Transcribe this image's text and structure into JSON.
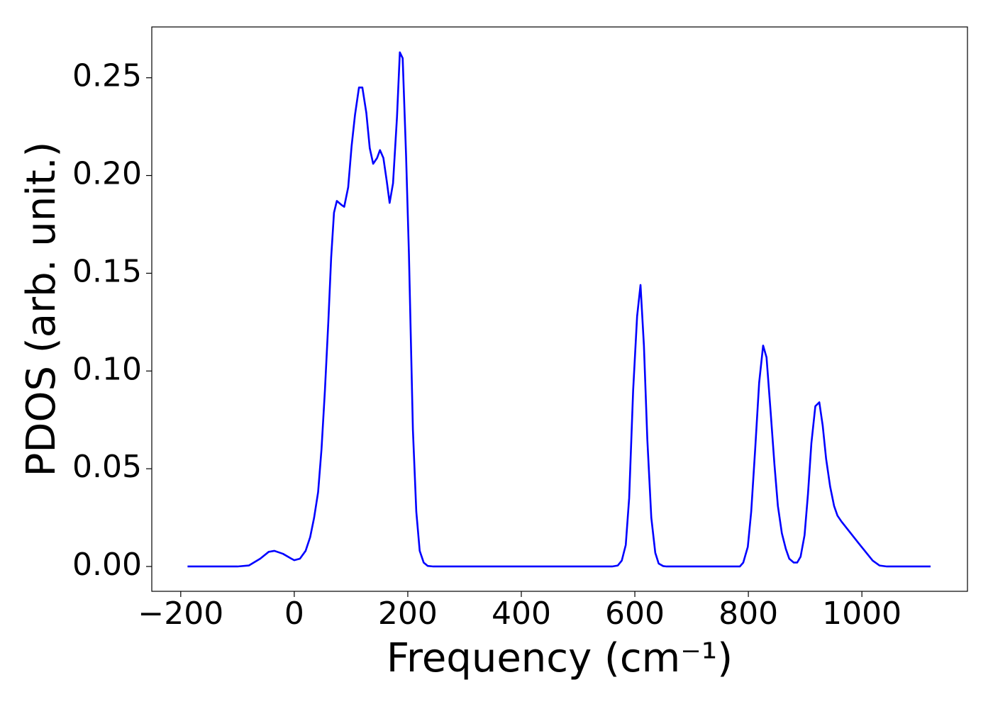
{
  "chart_data": {
    "type": "line",
    "xlabel": "Frequency (cm⁻¹)",
    "ylabel": "PDOS (arb. unit.)",
    "xlim": [
      -251,
      1186
    ],
    "ylim": [
      -0.0127,
      0.276
    ],
    "xticks": [
      {
        "value": -200,
        "label": "−200"
      },
      0,
      200,
      400,
      600,
      800,
      1000
    ],
    "yticks": [
      {
        "value": 0,
        "label": "0.00"
      },
      {
        "value": 0.05,
        "label": "0.05"
      },
      {
        "value": 0.1,
        "label": "0.10"
      },
      {
        "value": 0.15,
        "label": "0.15"
      },
      {
        "value": 0.2,
        "label": "0.20"
      },
      {
        "value": 0.25,
        "label": "0.25"
      }
    ],
    "grid": false,
    "x": [
      -188,
      -100,
      -80,
      -60,
      -45,
      -35,
      -20,
      -5,
      0,
      10,
      20,
      28,
      35,
      42,
      48,
      54,
      60,
      65,
      70,
      75,
      83,
      88,
      95,
      101,
      107,
      114,
      120,
      127,
      133,
      139,
      146,
      151,
      157,
      163,
      168,
      174,
      181,
      186,
      191,
      197,
      202,
      209,
      215,
      221,
      228,
      235,
      245,
      560,
      570,
      577,
      584,
      590,
      597,
      604,
      610,
      616,
      622,
      629,
      636,
      642,
      650,
      656,
      785,
      791,
      799,
      805,
      812,
      819,
      826,
      832,
      839,
      846,
      852,
      859,
      866,
      872,
      880,
      886,
      892,
      899,
      905,
      911,
      918,
      925,
      931,
      937,
      944,
      951,
      957,
      964,
      994,
      1019,
      1031,
      1044,
      1121
    ],
    "series": [
      {
        "name": "PDOS",
        "color": "#0000ff",
        "values": [
          0,
          0,
          0.0005,
          0.004,
          0.0075,
          0.008,
          0.0065,
          0.004,
          0.0032,
          0.004,
          0.008,
          0.015,
          0.025,
          0.038,
          0.06,
          0.09,
          0.125,
          0.158,
          0.181,
          0.187,
          0.185,
          0.184,
          0.194,
          0.215,
          0.231,
          0.245,
          0.245,
          0.232,
          0.214,
          0.206,
          0.209,
          0.213,
          0.209,
          0.197,
          0.186,
          0.196,
          0.23,
          0.263,
          0.26,
          0.21,
          0.16,
          0.07,
          0.028,
          0.008,
          0.002,
          0.0003,
          0,
          0,
          0.0005,
          0.003,
          0.011,
          0.035,
          0.09,
          0.128,
          0.144,
          0.113,
          0.065,
          0.025,
          0.007,
          0.0015,
          0.0002,
          0,
          0,
          0.002,
          0.01,
          0.028,
          0.06,
          0.094,
          0.113,
          0.107,
          0.08,
          0.052,
          0.031,
          0.017,
          0.009,
          0.004,
          0.002,
          0.002,
          0.005,
          0.016,
          0.037,
          0.063,
          0.082,
          0.084,
          0.072,
          0.055,
          0.041,
          0.031,
          0.026,
          0.023,
          0.012,
          0.003,
          0.0005,
          0,
          0
        ]
      }
    ]
  }
}
